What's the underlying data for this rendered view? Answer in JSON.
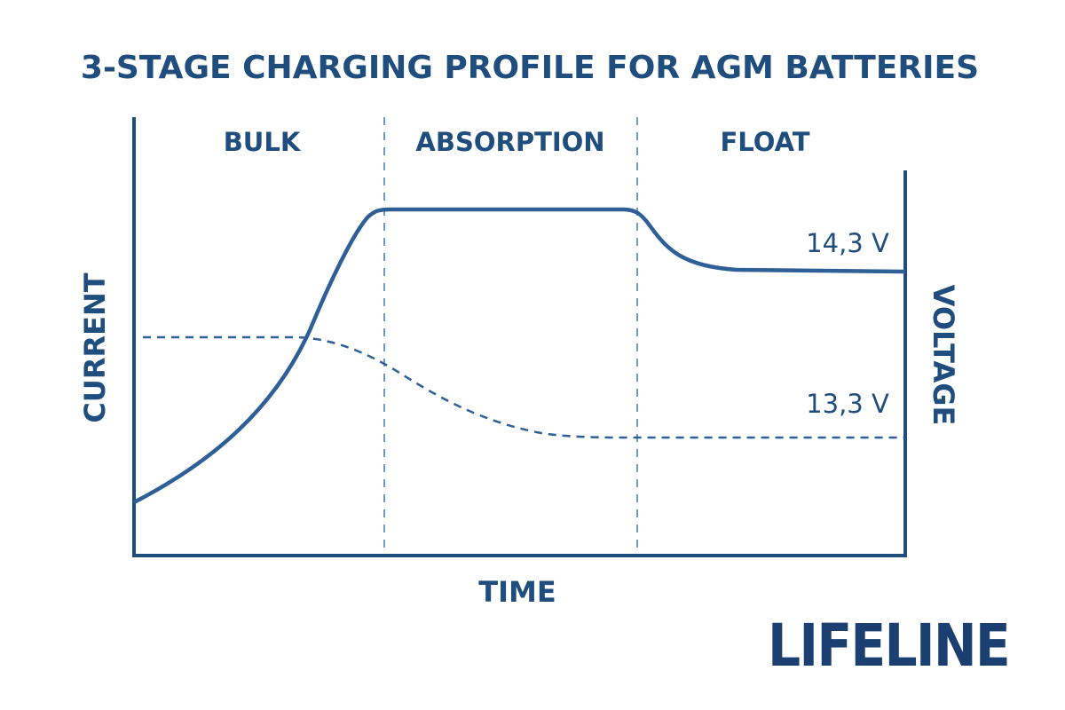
{
  "chart_data": {
    "type": "line",
    "title": "3-STAGE CHARGING PROFILE FOR AGM BATTERIES",
    "xlabel": "TIME",
    "ylabel_left": "CURRENT",
    "ylabel_right": "VOLTAGE",
    "stages": [
      "BULK",
      "ABSORPTION",
      "FLOAT"
    ],
    "annotations": {
      "voltage_high": "14,3 V",
      "voltage_low": "13,3 V"
    },
    "grid": false,
    "colors": {
      "primary": "#1f4d7e",
      "solid_line": "#2e5f97",
      "dashed_line": "#2e5f97",
      "stage_divider": "#6f9cc6",
      "logo": "#1a3f70"
    }
  },
  "logo": {
    "text": "LIFELINE"
  }
}
